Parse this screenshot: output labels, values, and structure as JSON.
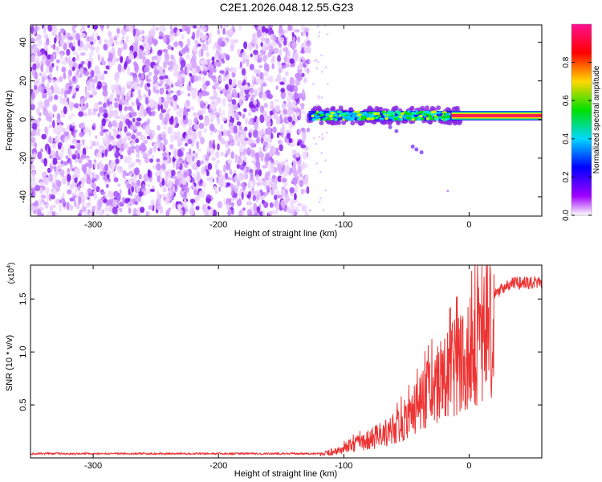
{
  "title": "C2E1.2026.048.12.55.G23",
  "chart_data": [
    {
      "type": "heatmap",
      "name": "spectrogram",
      "xlabel": "Height of straight line (km)",
      "ylabel": "Frequency (Hz)",
      "xlim": [
        -350,
        58
      ],
      "ylim": [
        -50,
        49
      ],
      "x_ticks": [
        -300,
        -200,
        -100,
        0
      ],
      "x_tick_labels": [
        "-300",
        "-200",
        "-100",
        "0"
      ],
      "y_ticks": [
        -40,
        -20,
        0,
        20,
        40
      ],
      "y_tick_labels": [
        "-40",
        "-20",
        "0",
        "20",
        "40"
      ],
      "noise_region_x": [
        -350,
        -128
      ],
      "signal_band_center_hz": 2,
      "signal_band_x": [
        -128,
        58
      ],
      "colorbar": {
        "label": "Normalized spectral amplitude",
        "range": [
          0,
          1
        ],
        "ticks": [
          0.0,
          0.2,
          0.4,
          0.6,
          0.8
        ],
        "tick_labels": [
          "0.0",
          "0.2",
          "0.4",
          "0.6",
          "0.8"
        ],
        "colormap": [
          "#ffffff",
          "#a000ff",
          "#0000ff",
          "#00d8ff",
          "#00e000",
          "#ffd800",
          "#ff0000",
          "#ff1090"
        ]
      }
    },
    {
      "type": "line",
      "name": "snr",
      "xlabel": "Height of straight line (km)",
      "ylabel": "SNR (10 * v/v)",
      "y_multiplier_label": "(x10",
      "y_multiplier_exponent": "4",
      "y_multiplier_close": ")",
      "xlim": [
        -350,
        58
      ],
      "ylim": [
        0,
        1.82
      ],
      "x_ticks": [
        -300,
        -200,
        -100,
        0
      ],
      "x_tick_labels": [
        "-300",
        "-200",
        "-100",
        "0"
      ],
      "y_ticks": [
        0.5,
        1.0,
        1.5
      ],
      "y_tick_labels": [
        "0.5",
        "1.0",
        "1.5"
      ],
      "color": "#ee3333",
      "envelope_points": [
        [
          -350,
          0.04
        ],
        [
          -120,
          0.04
        ],
        [
          -105,
          0.08
        ],
        [
          -95,
          0.15
        ],
        [
          -80,
          0.22
        ],
        [
          -60,
          0.35
        ],
        [
          -45,
          0.55
        ],
        [
          -35,
          0.75
        ],
        [
          -25,
          0.9
        ],
        [
          -15,
          1.05
        ],
        [
          -5,
          1.2
        ],
        [
          5,
          1.35
        ],
        [
          15,
          1.5
        ],
        [
          25,
          1.6
        ],
        [
          35,
          1.66
        ],
        [
          58,
          1.67
        ]
      ]
    }
  ]
}
